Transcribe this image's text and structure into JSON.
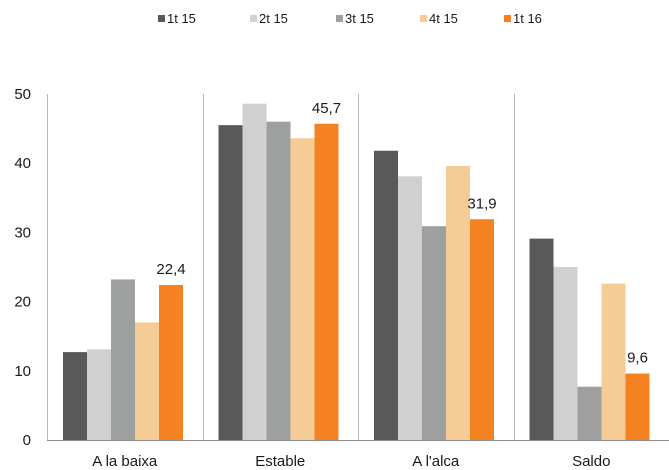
{
  "chart_data": {
    "type": "bar",
    "categories": [
      "A la baixa",
      "Estable",
      "A l'alca",
      "Saldo"
    ],
    "series": [
      {
        "name": "1t 15",
        "color": "#595959",
        "values": [
          12.7,
          45.5,
          41.8,
          29.1
        ]
      },
      {
        "name": "2t 15",
        "color": "#d0d0d0",
        "values": [
          13.1,
          48.6,
          38.1,
          25.0
        ]
      },
      {
        "name": "3t 15",
        "color": "#9ea0a0",
        "values": [
          23.2,
          46.0,
          30.9,
          7.7
        ]
      },
      {
        "name": "4t 15",
        "color": "#f5cc96",
        "values": [
          17.0,
          43.6,
          39.6,
          22.6
        ]
      },
      {
        "name": "1t 16",
        "color": "#f58220",
        "values": [
          22.4,
          45.7,
          31.9,
          9.6
        ]
      }
    ],
    "data_labels": [
      {
        "category_index": 0,
        "series_index": 4,
        "text": "22,4"
      },
      {
        "category_index": 1,
        "series_index": 4,
        "text": "45,7"
      },
      {
        "category_index": 2,
        "series_index": 4,
        "text": "31,9"
      },
      {
        "category_index": 3,
        "series_index": 4,
        "text": "9,6"
      }
    ],
    "yticks": [
      "0",
      "10",
      "20",
      "30",
      "40",
      "50"
    ],
    "ylim": [
      0,
      50
    ],
    "legend_position": "top",
    "category_separators": true,
    "grid": false
  }
}
